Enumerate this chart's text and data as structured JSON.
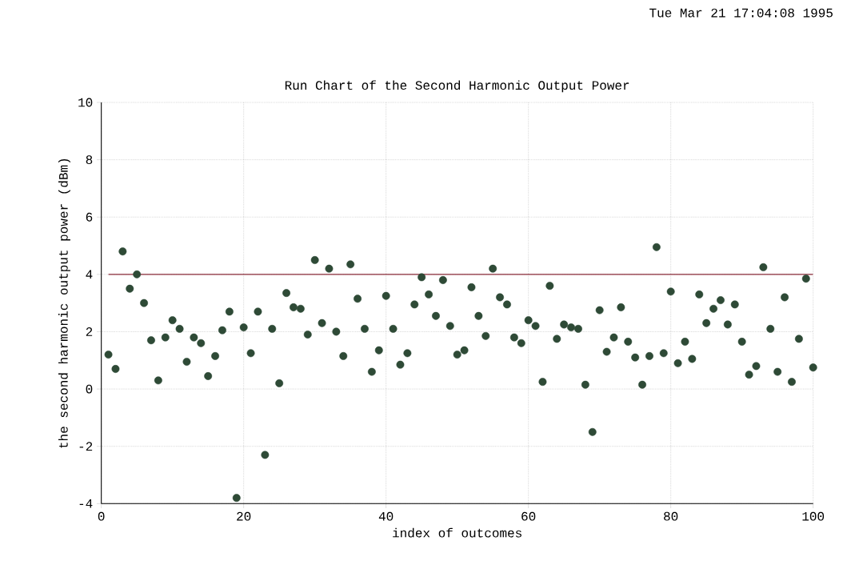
{
  "chart_data": {
    "type": "scatter",
    "title": "Run Chart of the Second Harmonic Output Power",
    "xlabel": "index of outcomes",
    "ylabel": "the second harmonic output power (dBm)",
    "x": [
      1,
      2,
      3,
      4,
      5,
      6,
      7,
      8,
      9,
      10,
      11,
      12,
      13,
      14,
      15,
      16,
      17,
      18,
      19,
      20,
      21,
      22,
      23,
      24,
      25,
      26,
      27,
      28,
      29,
      30,
      31,
      32,
      33,
      34,
      35,
      36,
      37,
      38,
      39,
      40,
      41,
      42,
      43,
      44,
      45,
      46,
      47,
      48,
      49,
      50,
      51,
      52,
      53,
      54,
      55,
      56,
      57,
      58,
      59,
      60,
      61,
      62,
      63,
      64,
      65,
      66,
      67,
      68,
      69,
      70,
      71,
      72,
      73,
      74,
      75,
      76,
      77,
      78,
      79,
      80,
      81,
      82,
      83,
      84,
      85,
      86,
      87,
      88,
      89,
      90,
      91,
      92,
      93,
      94,
      95,
      96,
      97,
      98,
      99,
      100
    ],
    "values": [
      1.2,
      0.7,
      4.8,
      3.5,
      4.0,
      3.0,
      1.7,
      0.3,
      1.8,
      2.4,
      2.1,
      0.95,
      1.8,
      1.6,
      0.45,
      1.15,
      2.05,
      2.7,
      -3.8,
      2.15,
      1.25,
      2.7,
      -2.3,
      2.1,
      0.2,
      3.35,
      2.85,
      2.8,
      1.9,
      4.5,
      2.3,
      4.2,
      2.0,
      1.15,
      4.35,
      3.15,
      2.1,
      0.6,
      1.35,
      3.25,
      2.1,
      0.85,
      1.25,
      2.95,
      3.9,
      3.3,
      2.55,
      3.8,
      2.2,
      1.2,
      1.35,
      3.55,
      2.55,
      1.85,
      4.2,
      3.2,
      2.95,
      1.8,
      1.6,
      2.4,
      2.2,
      0.25,
      3.6,
      1.75,
      2.25,
      2.15,
      2.1,
      0.15,
      -1.5,
      2.75,
      1.3,
      1.8,
      2.85,
      1.65,
      1.1,
      0.15,
      1.15,
      4.95,
      1.25,
      3.4,
      0.9,
      1.65,
      1.05,
      3.3,
      2.3,
      2.8,
      3.1,
      2.25,
      2.95,
      1.65,
      0.5,
      0.8,
      4.25,
      2.1,
      0.6,
      3.2,
      0.25,
      1.75,
      3.85,
      0.75
    ],
    "color": "#2e4a36",
    "xlim": [
      0,
      100
    ],
    "xticks": [
      0,
      20,
      40,
      60,
      80,
      100
    ],
    "ylim": [
      -4,
      10
    ],
    "yticks": [
      -4,
      -2,
      0,
      2,
      4,
      6,
      8,
      10
    ],
    "grid": true,
    "ref_lines": [
      {
        "axis": "y",
        "value": 4,
        "color": "#8b2c3a"
      }
    ],
    "annotations": [
      "Tue Mar 21 17:04:08 1995"
    ]
  }
}
